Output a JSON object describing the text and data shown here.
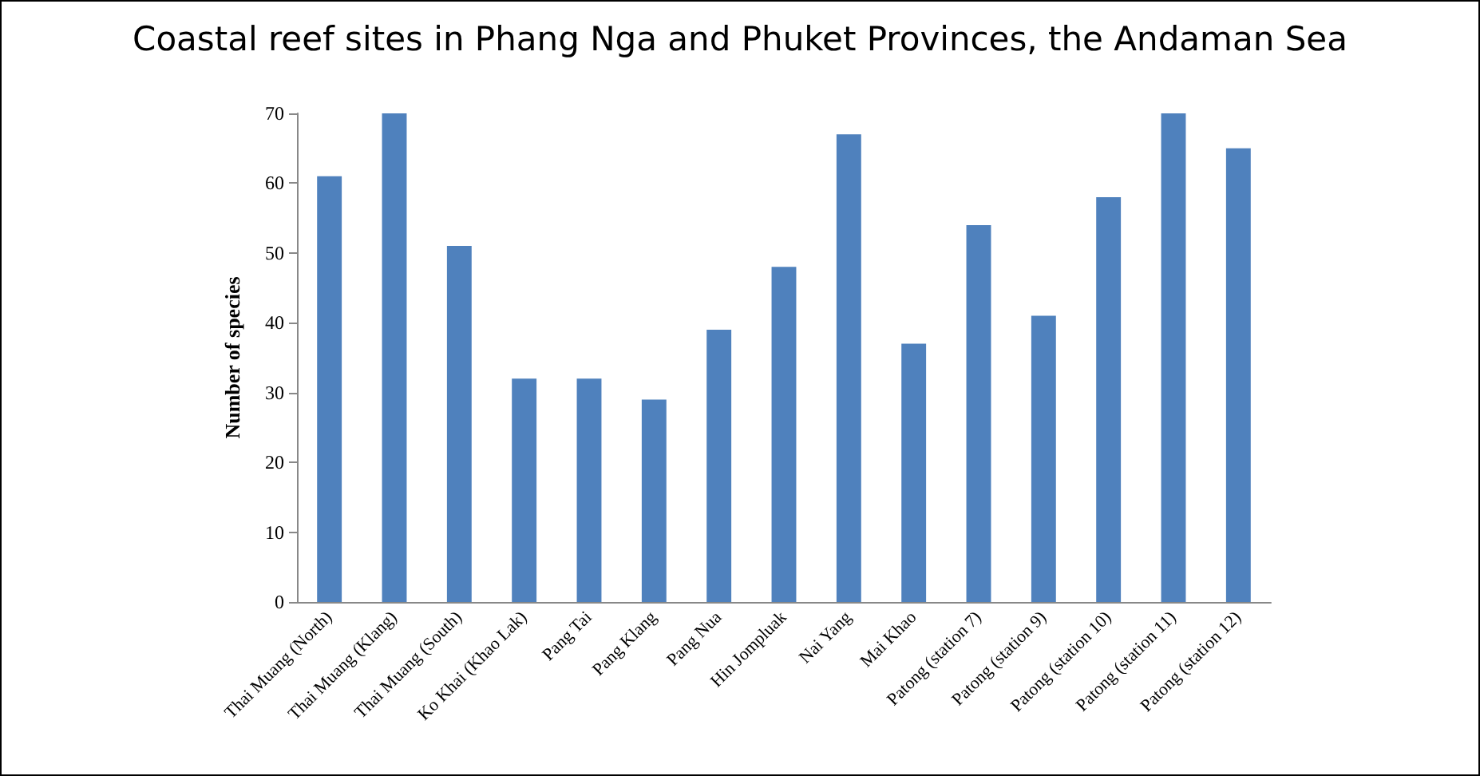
{
  "chart_data": {
    "type": "bar",
    "title": "Coastal reef sites in Phang Nga and Phuket Provinces, the Andaman Sea",
    "ylabel": "Number of species",
    "categories": [
      "Thai Muang (North)",
      "Thai Muang (Klang)",
      "Thai Muang (South)",
      "Ko Khai (Khao Lak)",
      "Pang Tai",
      "Pang Klang",
      "Pang Nua",
      "Hin Jompluak",
      "Nai Yang",
      "Mai Khao",
      "Patong (station 7)",
      "Patong (station 9)",
      "Patong (station 10)",
      "Patong (station 11)",
      "Patong (station 12)"
    ],
    "values": [
      61,
      70,
      51,
      32,
      32,
      29,
      39,
      48,
      67,
      37,
      54,
      41,
      58,
      70,
      65
    ],
    "color": "#4f81bd",
    "ylim": [
      0,
      70
    ],
    "yticks": [
      0,
      10,
      20,
      30,
      40,
      50,
      60,
      70
    ],
    "grid": false
  }
}
